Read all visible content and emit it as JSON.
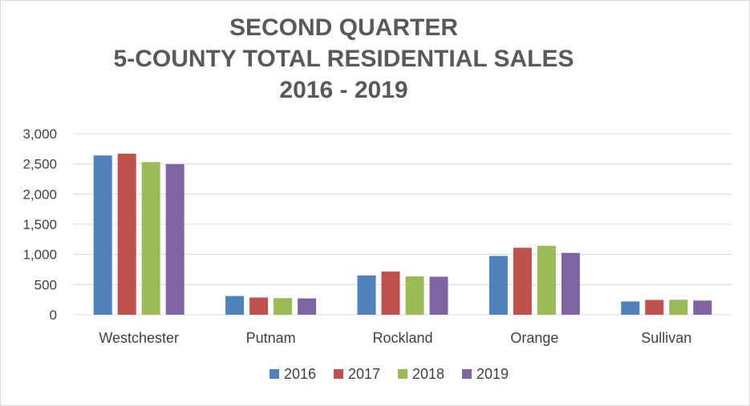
{
  "chart_data": {
    "type": "bar",
    "title_lines": [
      "SECOND QUARTER",
      "5-COUNTY TOTAL RESIDENTIAL SALES",
      "2016 - 2019"
    ],
    "categories": [
      "Westchester",
      "Putnam",
      "Rockland",
      "Orange",
      "Sullivan"
    ],
    "series": [
      {
        "name": "2016",
        "color": "#4f81bd",
        "values": [
          2640,
          310,
          650,
          975,
          220
        ]
      },
      {
        "name": "2017",
        "color": "#c0504d",
        "values": [
          2670,
          285,
          715,
          1110,
          245
        ]
      },
      {
        "name": "2018",
        "color": "#9bbb59",
        "values": [
          2530,
          275,
          635,
          1140,
          248
        ]
      },
      {
        "name": "2019",
        "color": "#8064a2",
        "values": [
          2495,
          270,
          630,
          1025,
          235
        ]
      }
    ],
    "ylim": [
      0,
      3000
    ],
    "yticks": [
      0,
      500,
      1000,
      1500,
      2000,
      2500,
      3000
    ],
    "ytick_labels": [
      "0",
      "500",
      "1,000",
      "1,500",
      "2,000",
      "2,500",
      "3,000"
    ],
    "grid": true,
    "legend_position": "bottom",
    "gridline_color": "#d9d9d9"
  }
}
